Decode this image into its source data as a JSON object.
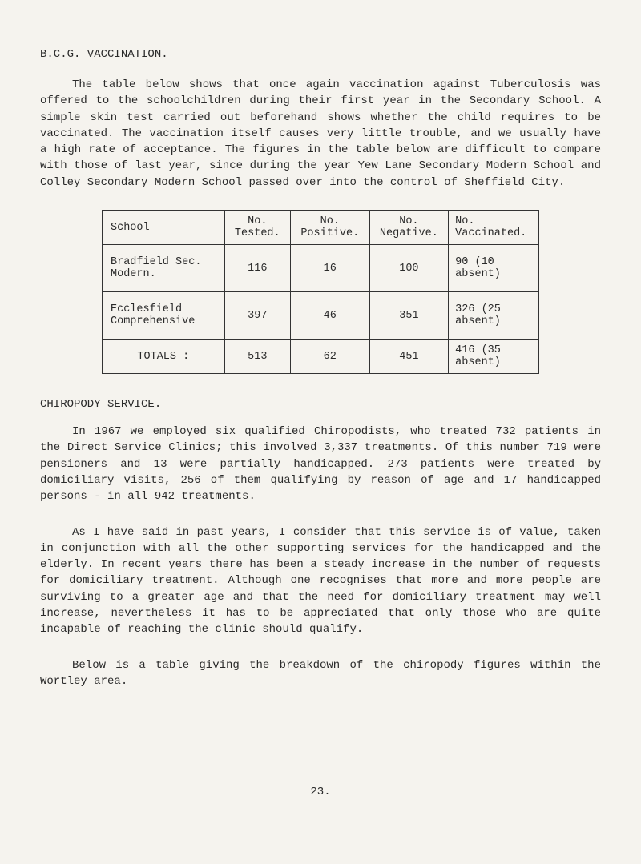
{
  "title": "B.C.G. VACCINATION.",
  "para1": "The table below shows that once again vaccination against Tuberculosis was offered to the schoolchildren during their first year in the Secondary School. A simple skin test carried out beforehand shows whether the child requires to be vaccinated. The vaccination itself causes very little trouble, and we usually have a high rate of acceptance. The figures in the table below are difficult to compare with those of last year, since during the year Yew Lane Secondary Modern School and Colley Secondary Modern School passed over into the control of Sheffield City.",
  "table": {
    "columns": [
      "School",
      "No. Tested.",
      "No. Positive.",
      "No. Negative.",
      "No. Vaccinated."
    ],
    "rows": [
      {
        "school": "Bradfield Sec. Modern.",
        "tested": "116",
        "positive": "16",
        "negative": "100",
        "vaccinated": "90 (10 absent)"
      },
      {
        "school": "Ecclesfield Comprehensive",
        "tested": "397",
        "positive": "46",
        "negative": "351",
        "vaccinated": "326 (25 absent)"
      },
      {
        "school": "TOTALS :",
        "tested": "513",
        "positive": "62",
        "negative": "451",
        "vaccinated": "416 (35 absent)"
      }
    ]
  },
  "subheading": "CHIROPODY SERVICE.",
  "para2": "In 1967 we employed six qualified Chiropodists, who treated 732 patients in the Direct Service Clinics; this involved 3,337 treatments. Of this number 719 were pensioners and 13 were partially handicapped. 273 patients were treated by domiciliary visits, 256 of them qualifying by reason of age and 17 handicapped persons - in all 942 treatments.",
  "para3": "As I have said in past years, I consider that this service is of value, taken in conjunction with all the other supporting services for the handicapped and the elderly. In recent years there has been a steady increase in the number of requests for domiciliary treatment. Although one recognises that more and more people are surviving to a greater age and that the need for domiciliary treatment may well increase, nevertheless it has to be appreciated that only those who are quite incapable of reaching the clinic should qualify.",
  "para4": "Below is a table giving the breakdown of the chiropody figures within the Wortley area.",
  "pagenum": "23."
}
